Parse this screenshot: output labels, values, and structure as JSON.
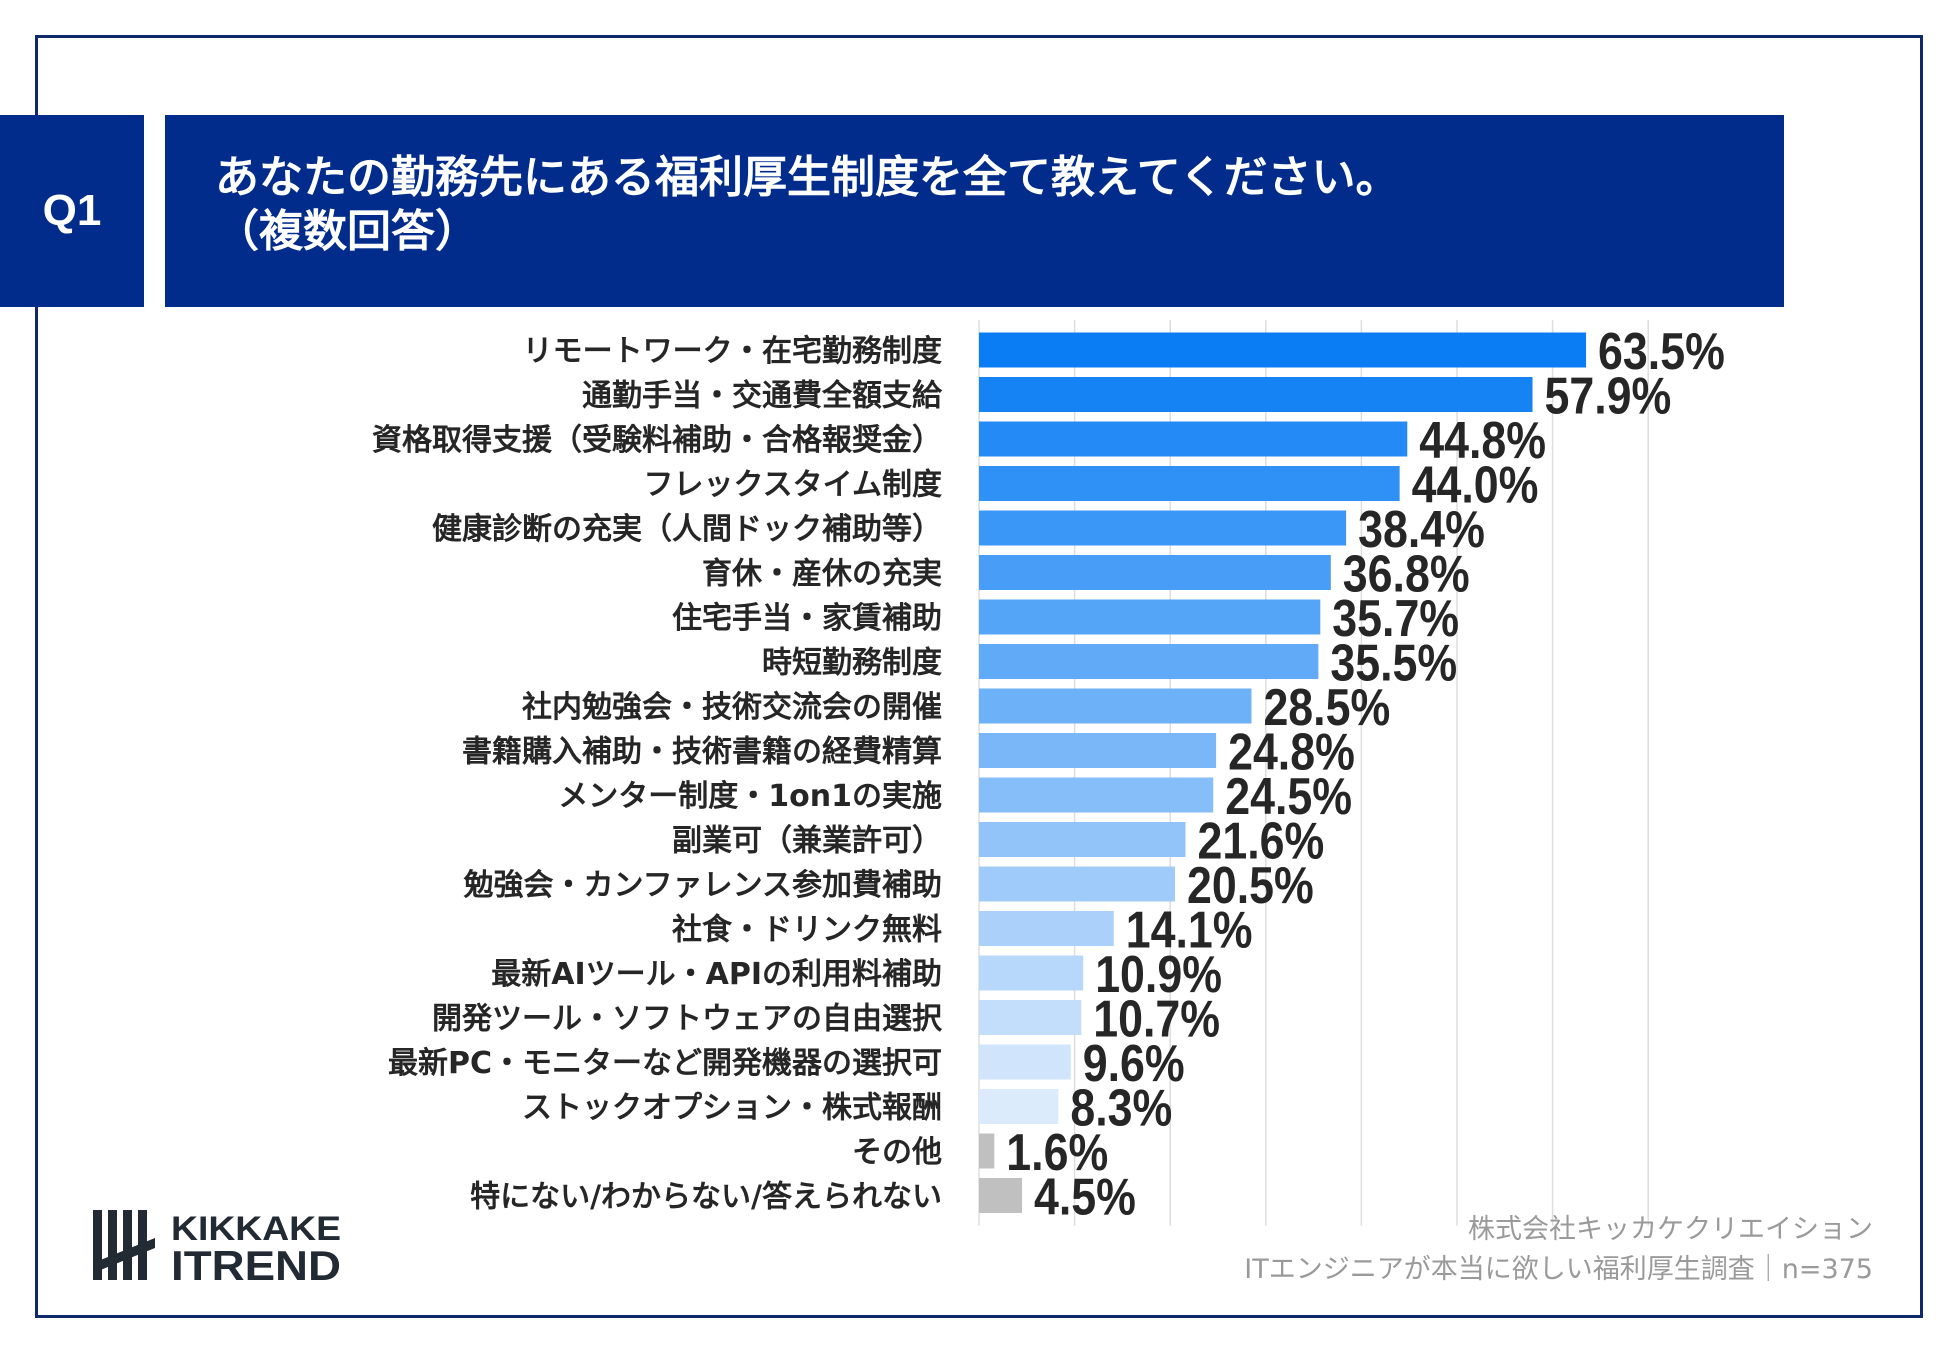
{
  "header": {
    "question_number": "Q1",
    "title_line1": "あなたの勤務先にある福利厚生制度を全て教えてください。",
    "title_line2": "（複数回答）"
  },
  "colors": {
    "header_bg": "#022c8c",
    "bar_dark": "#0a7df5",
    "bar_light": "#dcebfc",
    "bar_gray": "#c0c0c0",
    "text": "#262626"
  },
  "chart_data": {
    "type": "bar",
    "orientation": "horizontal",
    "categories": [
      "リモートワーク・在宅勤務制度",
      "通勤手当・交通費全額支給",
      "資格取得支援（受験料補助・合格報奨金）",
      "フレックスタイム制度",
      "健康診断の充実（人間ドック補助等）",
      "育休・産休の充実",
      "住宅手当・家賃補助",
      "時短勤務制度",
      "社内勉強会・技術交流会の開催",
      "書籍購入補助・技術書籍の経費精算",
      "メンター制度・1on1の実施",
      "副業可（兼業許可）",
      "勉強会・カンファレンス参加費補助",
      "社食・ドリンク無料",
      "最新AIツール・APIの利用料補助",
      "開発ツール・ソフトウェアの自由選択",
      "最新PC・モニターなど開発機器の選択可",
      "ストックオプション・株式報酬",
      "その他",
      "特にない/わからない/答えられない"
    ],
    "values": [
      63.5,
      57.9,
      44.8,
      44.0,
      38.4,
      36.8,
      35.7,
      35.5,
      28.5,
      24.8,
      24.5,
      21.6,
      20.5,
      14.1,
      10.9,
      10.7,
      9.6,
      8.3,
      1.6,
      4.5
    ],
    "value_labels": [
      "63.5%",
      "57.9%",
      "44.8%",
      "44.0%",
      "38.4%",
      "36.8%",
      "35.7%",
      "35.5%",
      "28.5%",
      "24.8%",
      "24.5%",
      "21.6%",
      "20.5%",
      "14.1%",
      "10.9%",
      "10.7%",
      "9.6%",
      "8.3%",
      "1.6%",
      "4.5%"
    ],
    "unit": "%",
    "xlim": [
      0,
      70
    ],
    "grid": true,
    "gray_categories": [
      "その他",
      "特にない/わからない/答えられない"
    ]
  },
  "footer": {
    "company": "株式会社キッカケクリエイション",
    "survey": "ITエンジニアが本当に欲しい福利厚生調査｜n=375",
    "logo_line1": "KIKKAKE",
    "logo_line2": "ITREND"
  }
}
